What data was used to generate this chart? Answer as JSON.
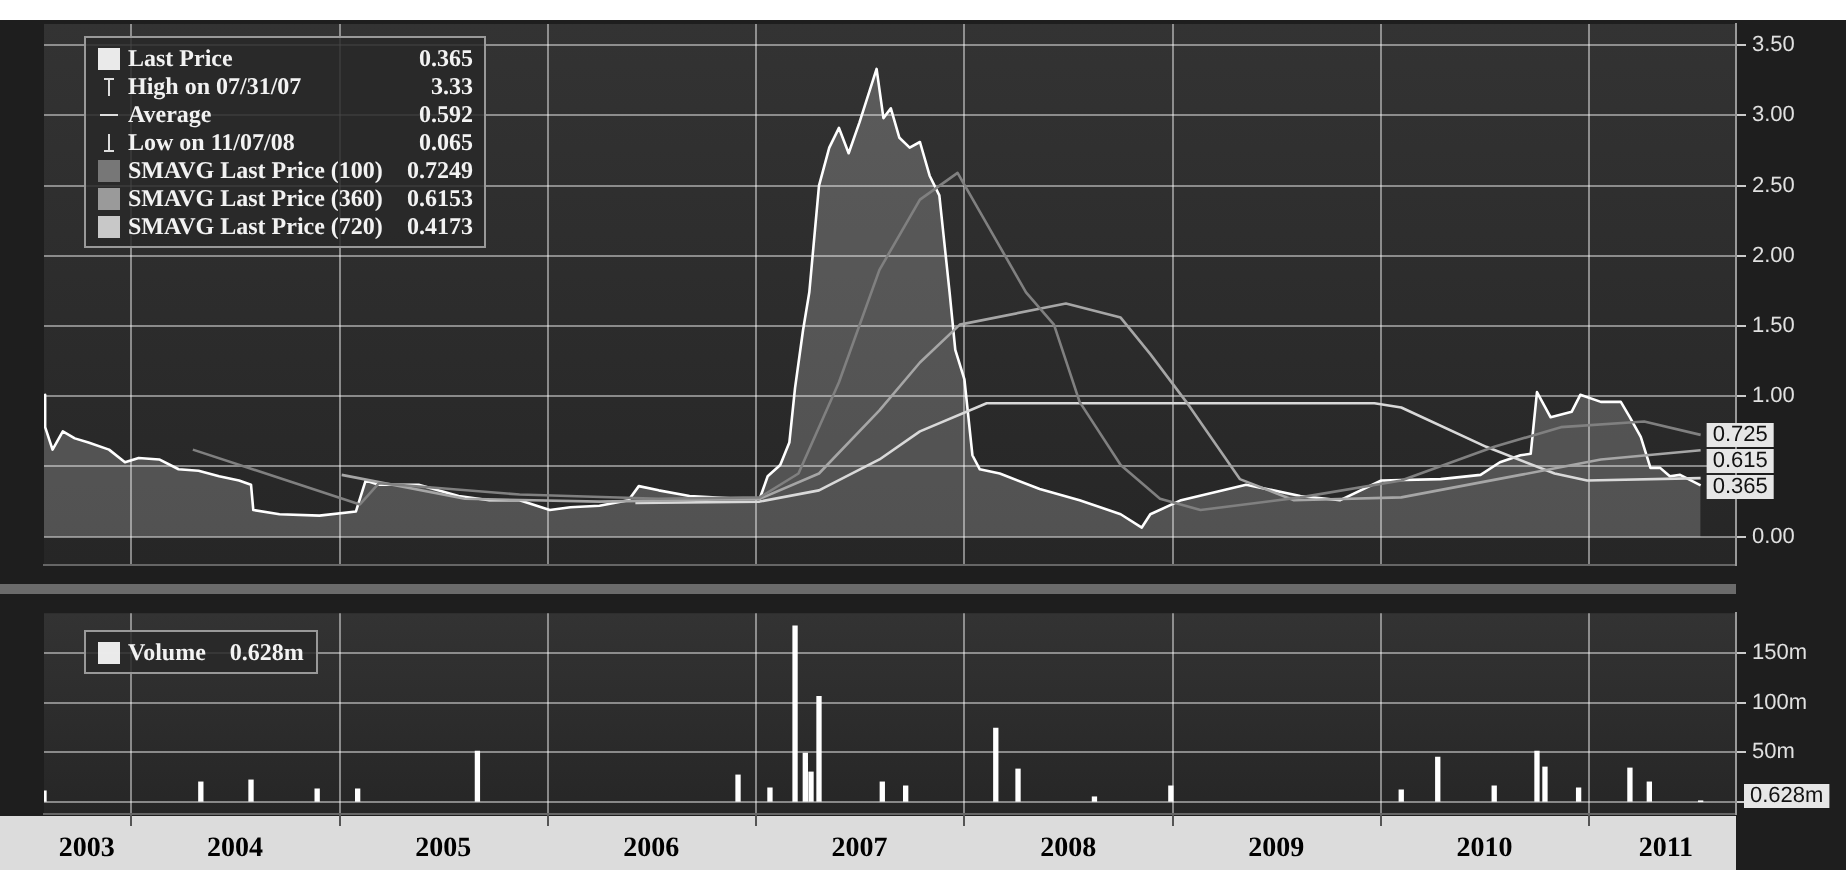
{
  "chart_data": [
    {
      "type": "line",
      "legend": "top left",
      "grid": true,
      "marker": "none",
      "tick_labels": "y",
      "xlim": [
        "2003-08-01",
        "2011-09-15"
      ],
      "xticks": [
        {
          "value": "2004-01-01",
          "label": null
        },
        {
          "value": "2005-01-01",
          "label": null
        },
        {
          "value": "2006-01-01",
          "label": null
        },
        {
          "value": "2007-01-01",
          "label": null
        },
        {
          "value": "2008-01-01",
          "label": null
        },
        {
          "value": "2009-01-01",
          "label": null
        },
        {
          "value": "2010-01-01",
          "label": null
        },
        {
          "value": "2011-01-01",
          "label": null
        }
      ],
      "ylim": [
        -0.2,
        3.65
      ],
      "yticks": [
        {
          "value": 0,
          "label": "0.00"
        },
        {
          "value": 0.5,
          "label": null
        },
        {
          "value": 1,
          "label": "1.00"
        },
        {
          "value": 1.5,
          "label": "1.50"
        },
        {
          "value": 2,
          "label": "2.00"
        },
        {
          "value": 2.5,
          "label": "2.50"
        },
        {
          "value": 3,
          "label": "3.00"
        },
        {
          "value": 3.5,
          "label": "3.50"
        }
      ],
      "annotations": [
        "High on 07/31/07 3.33",
        "Average 0.592",
        "Low on 11/07/08 0.065"
      ],
      "series": [
        {
          "name": "Last Price 0.365",
          "type": "area",
          "color": "#ffffff",
          "x": [
            "2003-08-01",
            "2003-08-03",
            "2003-08-16",
            "2003-09-03",
            "2003-09-24",
            "2003-10-18",
            "2003-11-23",
            "2003-12-21",
            "2004-01-14",
            "2004-02-19",
            "2004-03-24",
            "2004-04-28",
            "2004-06-03",
            "2004-07-08",
            "2004-07-29",
            "2004-08-02",
            "2004-09-17",
            "2004-11-26",
            "2005-01-29",
            "2005-02-15",
            "2005-03-10",
            "2005-05-19",
            "2005-07-28",
            "2005-09-20",
            "2005-11-12",
            "2006-01-04",
            "2006-02-09",
            "2006-04-01",
            "2006-05-22",
            "2006-06-09",
            "2006-07-14",
            "2006-09-06",
            "2006-12-03",
            "2007-01-07",
            "2007-01-21",
            "2007-02-12",
            "2007-02-28",
            "2007-03-10",
            "2007-03-24",
            "2007-04-04",
            "2007-04-21",
            "2007-05-09",
            "2007-05-26",
            "2007-06-12",
            "2007-07-01",
            "2007-07-31",
            "2007-08-12",
            "2007-08-25",
            "2007-09-09",
            "2007-09-27",
            "2007-10-15",
            "2007-11-01",
            "2007-11-18",
            "2007-12-06",
            "2007-12-16",
            "2008-01-01",
            "2008-01-15",
            "2008-01-28",
            "2008-03-03",
            "2008-05-12",
            "2008-07-21",
            "2008-10-01",
            "2008-11-07",
            "2008-11-22",
            "2009-01-15",
            "2009-05-09",
            "2009-08-12",
            "2009-10-21",
            "2010-01-01",
            "2010-04-15",
            "2010-06-24",
            "2010-07-28",
            "2010-09-02",
            "2010-09-20",
            "2010-10-01",
            "2010-10-25",
            "2010-12-01",
            "2010-12-16",
            "2011-01-21",
            "2011-02-25",
            "2011-03-13",
            "2011-04-01",
            "2011-04-18",
            "2011-05-05",
            "2011-05-22",
            "2011-06-09",
            "2011-07-15"
          ],
          "values": [
            1.01,
            0.78,
            0.62,
            0.75,
            0.7,
            0.67,
            0.62,
            0.53,
            0.56,
            0.55,
            0.48,
            0.47,
            0.43,
            0.4,
            0.37,
            0.19,
            0.16,
            0.15,
            0.18,
            0.4,
            0.37,
            0.37,
            0.29,
            0.26,
            0.26,
            0.19,
            0.21,
            0.22,
            0.26,
            0.36,
            0.33,
            0.29,
            0.27,
            0.27,
            0.43,
            0.51,
            0.67,
            1.06,
            1.47,
            1.74,
            2.5,
            2.77,
            2.91,
            2.73,
            2.95,
            3.33,
            2.98,
            3.05,
            2.84,
            2.77,
            2.81,
            2.57,
            2.43,
            1.74,
            1.33,
            1.12,
            0.58,
            0.48,
            0.45,
            0.34,
            0.26,
            0.16,
            0.065,
            0.16,
            0.26,
            0.37,
            0.29,
            0.26,
            0.4,
            0.41,
            0.44,
            0.53,
            0.58,
            0.59,
            1.03,
            0.85,
            0.89,
            1.01,
            0.96,
            0.96,
            0.85,
            0.71,
            0.49,
            0.49,
            0.43,
            0.44,
            0.365
          ],
          "value_labels": [
            null,
            null,
            null,
            null,
            null,
            null,
            null,
            null,
            null,
            null,
            null,
            null,
            null,
            null,
            null,
            null,
            null,
            null,
            null,
            null,
            null,
            null,
            null,
            null,
            null,
            null,
            null,
            null,
            null,
            null,
            null,
            null,
            null,
            null,
            null,
            null,
            null,
            null,
            null,
            null,
            null,
            null,
            null,
            null,
            null,
            null,
            null,
            null,
            null,
            null,
            null,
            null,
            null,
            null,
            null,
            null,
            null,
            null,
            null,
            null,
            null,
            null,
            null,
            null,
            null,
            null,
            null,
            null,
            null,
            null,
            null,
            null,
            null,
            null,
            null,
            null,
            null,
            null,
            null,
            null,
            null,
            null,
            null,
            null,
            null,
            null,
            "0.365"
          ]
        },
        {
          "name": "SMAVG Last Price (100) 0.7249",
          "color": "#808080",
          "x": [
            "2004-04-18",
            "2005-02-05",
            "2005-03-10",
            "2005-11-12",
            "2006-07-14",
            "2007-01-07",
            "2007-03-16",
            "2007-05-26",
            "2007-08-05",
            "2007-10-15",
            "2007-12-20",
            "2008-04-18",
            "2008-06-06",
            "2008-07-21",
            "2008-10-01",
            "2008-12-09",
            "2009-02-18",
            "2009-08-12",
            "2010-02-05",
            "2010-07-18",
            "2010-11-12",
            "2011-04-07",
            "2011-07-15"
          ],
          "values": [
            0.62,
            0.23,
            0.38,
            0.3,
            0.27,
            0.28,
            0.45,
            1.1,
            1.9,
            2.4,
            2.59,
            1.74,
            1.51,
            0.96,
            0.51,
            0.27,
            0.19,
            0.28,
            0.4,
            0.64,
            0.78,
            0.82,
            0.7249
          ],
          "value_labels": [
            null,
            null,
            null,
            null,
            null,
            null,
            null,
            null,
            null,
            null,
            null,
            null,
            null,
            null,
            null,
            null,
            null,
            null,
            null,
            null,
            null,
            null,
            "0.725"
          ]
        },
        {
          "name": "SMAVG Last Price (360) 0.6153",
          "color": "#a6a6a6",
          "x": [
            "2005-01-04",
            "2005-08-08",
            "2006-04-01",
            "2007-01-07",
            "2007-04-21",
            "2007-08-05",
            "2007-10-15",
            "2007-12-24",
            "2008-06-27",
            "2008-10-01",
            "2008-11-22",
            "2009-01-24",
            "2009-04-28",
            "2009-08-01",
            "2010-02-05",
            "2010-09-02",
            "2011-01-21",
            "2011-07-15"
          ],
          "values": [
            0.44,
            0.27,
            0.25,
            0.27,
            0.45,
            0.9,
            1.24,
            1.51,
            1.66,
            1.56,
            1.3,
            0.96,
            0.41,
            0.26,
            0.28,
            0.44,
            0.55,
            0.6153
          ],
          "value_labels": [
            null,
            null,
            null,
            null,
            null,
            null,
            null,
            null,
            null,
            null,
            null,
            null,
            null,
            null,
            null,
            null,
            null,
            "0.615"
          ]
        },
        {
          "name": "SMAVG Last Price (720) 0.4173",
          "color": "#d9d9d9",
          "x": [
            "2006-06-03",
            "2007-01-07",
            "2007-04-21",
            "2007-08-05",
            "2007-10-15",
            "2008-02-09",
            "2009-12-20",
            "2010-02-05",
            "2010-07-04",
            "2010-11-01",
            "2010-12-28",
            "2011-07-15"
          ],
          "values": [
            0.24,
            0.25,
            0.33,
            0.55,
            0.75,
            0.95,
            0.95,
            0.92,
            0.64,
            0.45,
            0.4,
            0.4173
          ]
        }
      ]
    },
    {
      "type": "bar",
      "legend": "top left",
      "grid": true,
      "xlim": [
        "2003-08-01",
        "2011-09-15"
      ],
      "xticks": [
        {
          "value": "2003-10-15",
          "label": "2003"
        },
        {
          "value": "2004-01-01",
          "label": null
        },
        {
          "value": "2004-07-01",
          "label": "2004"
        },
        {
          "value": "2005-01-01",
          "label": null
        },
        {
          "value": "2005-07-01",
          "label": "2005"
        },
        {
          "value": "2006-01-01",
          "label": null
        },
        {
          "value": "2006-07-01",
          "label": "2006"
        },
        {
          "value": "2007-01-01",
          "label": null
        },
        {
          "value": "2007-07-01",
          "label": "2007"
        },
        {
          "value": "2008-01-01",
          "label": null
        },
        {
          "value": "2008-07-01",
          "label": "2008"
        },
        {
          "value": "2009-01-01",
          "label": null
        },
        {
          "value": "2009-07-01",
          "label": "2009"
        },
        {
          "value": "2010-01-01",
          "label": null
        },
        {
          "value": "2010-07-01",
          "label": "2010"
        },
        {
          "value": "2011-01-01",
          "label": null
        },
        {
          "value": "2011-05-15",
          "label": "2011"
        }
      ],
      "ylim": [
        -12,
        190
      ],
      "annotations": [
        "0.628m"
      ],
      "yticks": [
        {
          "value": 0,
          "label": null
        },
        {
          "value": 50,
          "label": "50m"
        },
        {
          "value": 100,
          "label": "100m"
        },
        {
          "value": 150,
          "label": "150m"
        }
      ],
      "series": [
        {
          "name": "Volume 0.628m",
          "color": "#ffffff",
          "x": [
            "2003-08-01",
            "2004-05-02",
            "2004-07-29",
            "2004-11-22",
            "2005-02-01",
            "2005-08-30",
            "2006-11-30",
            "2007-01-25",
            "2007-03-10",
            "2007-03-28",
            "2007-04-07",
            "2007-04-21",
            "2007-08-10",
            "2007-09-20",
            "2008-02-25",
            "2008-04-04",
            "2008-08-16",
            "2008-12-28",
            "2010-02-05",
            "2010-04-10",
            "2010-07-18",
            "2010-10-01",
            "2010-10-15",
            "2010-12-13",
            "2011-03-13",
            "2011-04-16",
            "2011-07-15"
          ],
          "values": [
            11,
            20,
            22,
            13,
            13,
            51,
            27,
            14,
            177,
            49,
            30,
            106,
            20,
            16,
            74,
            33,
            5,
            16,
            12,
            45,
            16,
            51,
            35,
            14,
            34,
            20,
            0.628
          ]
        }
      ]
    }
  ]
}
